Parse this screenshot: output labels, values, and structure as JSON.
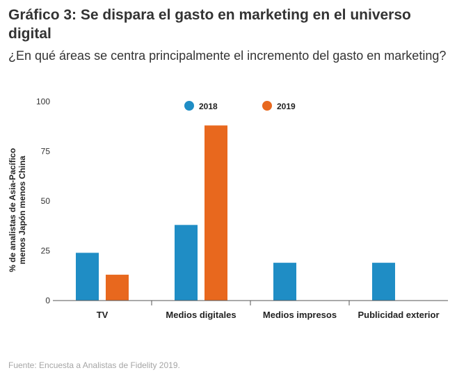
{
  "chart_data": {
    "type": "bar",
    "title": "Gráfico 3: Se dispara el gasto en marketing en el universo digital",
    "subtitle": "¿En qué áreas se centra principalmente el incremento del gasto en marketing?",
    "categories": [
      "TV",
      "Medios digitales",
      "Medios impresos",
      "Publicidad exterior"
    ],
    "series": [
      {
        "name": "2018",
        "color": "#1f8dc5",
        "values": [
          24,
          38,
          19,
          19
        ]
      },
      {
        "name": "2019",
        "color": "#e8681e",
        "values": [
          13,
          88,
          0,
          0
        ]
      }
    ],
    "ylim": [
      0,
      100
    ],
    "yticks": [
      "0",
      "25",
      "50",
      "75",
      "100"
    ],
    "ylabel_lines": [
      "% de analistas de Asia-Pacífico",
      "menos Japón menos China"
    ],
    "xlabel": "",
    "legend_position": "top-center",
    "grid": false
  },
  "source": "Fuente: Encuesta a Analistas de Fidelity 2019."
}
